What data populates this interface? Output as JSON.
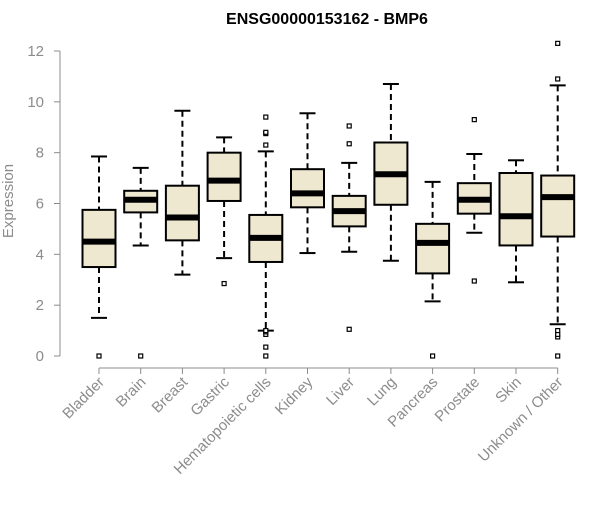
{
  "chart_data": {
    "type": "boxplot",
    "title": "ENSG00000153162 - BMP6",
    "xlabel": "",
    "ylabel": "Expression",
    "ylim": [
      0,
      12
    ],
    "yticks": [
      0,
      2,
      4,
      6,
      8,
      10,
      12
    ],
    "grid": false,
    "legend": "none",
    "box_fill": "#efe8d1",
    "box_stroke": "#000000",
    "axis_color": "#8c8c8c",
    "categories": [
      "Bladder",
      "Brain",
      "Breast",
      "Gastric",
      "Hematopoietic cells",
      "Kidney",
      "Liver",
      "Lung",
      "Pancreas",
      "Prostate",
      "Skin",
      "Unknown / Other"
    ],
    "boxes": [
      {
        "whisker_low": 1.5,
        "q1": 3.5,
        "median": 4.5,
        "q3": 5.75,
        "whisker_high": 7.85,
        "outliers": [
          0.0
        ]
      },
      {
        "whisker_low": 4.35,
        "q1": 5.65,
        "median": 6.15,
        "q3": 6.5,
        "whisker_high": 7.4,
        "outliers": [
          0.0
        ]
      },
      {
        "whisker_low": 3.2,
        "q1": 4.55,
        "median": 5.45,
        "q3": 6.7,
        "whisker_high": 9.65,
        "outliers": []
      },
      {
        "whisker_low": 3.85,
        "q1": 6.1,
        "median": 6.9,
        "q3": 8.0,
        "whisker_high": 8.6,
        "outliers": [
          2.85
        ]
      },
      {
        "whisker_low": 1.0,
        "q1": 3.7,
        "median": 4.65,
        "q3": 5.55,
        "whisker_high": 8.05,
        "outliers": [
          0.0,
          0.35,
          0.85,
          0.95,
          1.0,
          8.3,
          8.75,
          8.8,
          9.4
        ]
      },
      {
        "whisker_low": 4.05,
        "q1": 5.85,
        "median": 6.4,
        "q3": 7.35,
        "whisker_high": 9.55,
        "outliers": []
      },
      {
        "whisker_low": 4.1,
        "q1": 5.1,
        "median": 5.7,
        "q3": 6.3,
        "whisker_high": 7.6,
        "outliers": [
          1.05,
          8.35,
          9.05
        ]
      },
      {
        "whisker_low": 3.75,
        "q1": 5.95,
        "median": 7.15,
        "q3": 8.4,
        "whisker_high": 10.7,
        "outliers": []
      },
      {
        "whisker_low": 2.15,
        "q1": 3.25,
        "median": 4.45,
        "q3": 5.2,
        "whisker_high": 6.85,
        "outliers": [
          0.0
        ]
      },
      {
        "whisker_low": 4.85,
        "q1": 5.6,
        "median": 6.15,
        "q3": 6.8,
        "whisker_high": 7.95,
        "outliers": [
          2.95,
          9.3
        ]
      },
      {
        "whisker_low": 2.9,
        "q1": 4.35,
        "median": 5.5,
        "q3": 7.2,
        "whisker_high": 7.7,
        "outliers": []
      },
      {
        "whisker_low": 1.25,
        "q1": 4.7,
        "median": 6.25,
        "q3": 7.1,
        "whisker_high": 10.65,
        "outliers": [
          0.0,
          0.75,
          0.85,
          1.0,
          10.9,
          12.3
        ]
      }
    ]
  }
}
